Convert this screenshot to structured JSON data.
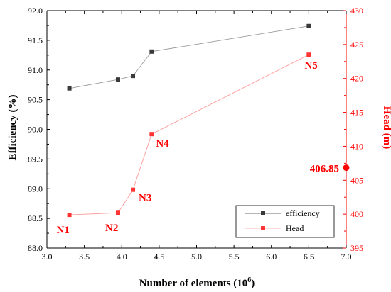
{
  "chart_data": {
    "type": "line",
    "xlabel": "Number of elements (10",
    "xlabel_sup": "6",
    "xlabel_close": ")",
    "ylabel_left": "Efficiency (%)",
    "ylabel_right": "Head (m)",
    "xlim": [
      3.0,
      7.0
    ],
    "ylim_left": [
      88.0,
      92.0
    ],
    "ylim_right": [
      395,
      430
    ],
    "x_ticks": [
      "3.0",
      "3.5",
      "4.0",
      "4.5",
      "5.0",
      "5.5",
      "6.0",
      "6.5",
      "7.0"
    ],
    "y_left_ticks": [
      "88.0",
      "88.5",
      "89.0",
      "89.5",
      "90.0",
      "90.5",
      "91.0",
      "91.5",
      "92.0"
    ],
    "y_right_ticks": [
      "395",
      "400",
      "405",
      "410",
      "415",
      "420",
      "425",
      "430"
    ],
    "grid": false,
    "legend_position": "bottom-right",
    "series": [
      {
        "name": "efficiency",
        "axis": "left",
        "color": "#3a3a3a",
        "x": [
          3.3,
          3.95,
          4.15,
          4.4,
          6.5
        ],
        "y": [
          90.69,
          90.84,
          90.9,
          91.31,
          91.74
        ]
      },
      {
        "name": "Head",
        "axis": "right",
        "color": "#ff3333",
        "x": [
          3.3,
          3.95,
          4.15,
          4.4,
          6.5
        ],
        "y": [
          399.9,
          400.2,
          403.6,
          411.8,
          423.5
        ],
        "point_labels": [
          "N1",
          "N2",
          "N3",
          "N4",
          "N5"
        ]
      }
    ],
    "annotation": {
      "text": "406.85",
      "axis": "right",
      "x": 7.0,
      "y": 406.85,
      "color": "#ff0000"
    }
  }
}
